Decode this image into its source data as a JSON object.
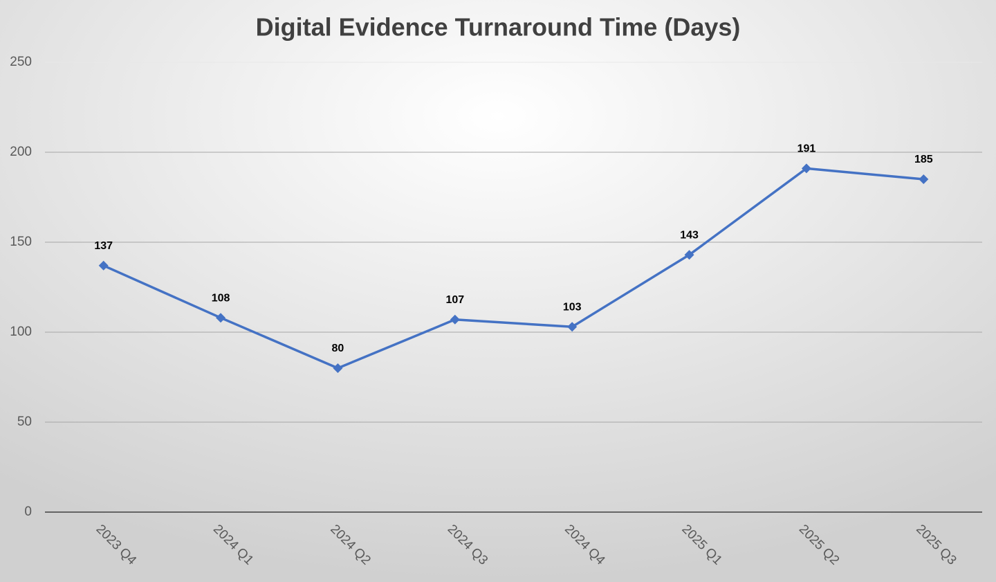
{
  "chart_data": {
    "type": "line",
    "title": "Digital Evidence Turnaround Time (Days)",
    "categories": [
      "2023 Q4",
      "2024 Q1",
      "2024 Q2",
      "2024 Q3",
      "2024 Q4",
      "2025 Q1",
      "2025 Q2",
      "2025 Q3"
    ],
    "values": [
      137,
      108,
      80,
      107,
      103,
      143,
      191,
      185
    ],
    "color": "#4472c4",
    "ylim": [
      0,
      250
    ],
    "yticks": [
      0,
      50,
      100,
      150,
      200,
      250
    ],
    "grid": true,
    "drop_lines": true,
    "data_labels": true
  }
}
